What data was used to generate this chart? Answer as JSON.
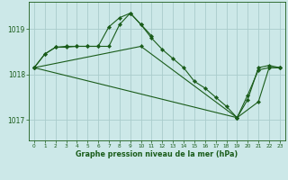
{
  "title": "Graphe pression niveau de la mer (hPa)",
  "bg_color": "#cce8e8",
  "grid_color": "#aacccc",
  "line_color": "#1a5c1a",
  "ylabel_ticks": [
    1017,
    1018,
    1019
  ],
  "xlim": [
    -0.5,
    23.5
  ],
  "ylim": [
    1016.55,
    1019.6
  ],
  "series": [
    {
      "x": [
        0,
        1,
        2,
        3,
        4,
        5,
        6,
        7,
        8,
        9,
        10,
        11
      ],
      "y": [
        1018.15,
        1018.45,
        1018.6,
        1018.6,
        1018.62,
        1018.62,
        1018.62,
        1019.05,
        1019.25,
        1019.35,
        1019.1,
        1018.85
      ]
    },
    {
      "x": [
        0,
        1,
        2,
        3,
        4,
        5,
        6,
        7,
        8,
        9,
        10,
        11,
        12,
        13,
        14,
        15,
        16,
        17,
        18,
        19,
        20,
        21,
        22,
        23
      ],
      "y": [
        1018.15,
        1018.45,
        1018.6,
        1018.62,
        1018.62,
        1018.62,
        1018.62,
        1018.62,
        1019.1,
        1019.35,
        1019.1,
        1018.8,
        1018.55,
        1018.35,
        1018.15,
        1017.85,
        1017.7,
        1017.5,
        1017.3,
        1017.05,
        1017.45,
        1018.15,
        1018.2,
        1018.15
      ]
    },
    {
      "x": [
        0,
        10,
        19,
        21,
        22,
        23
      ],
      "y": [
        1018.15,
        1018.62,
        1017.05,
        1017.4,
        1018.15,
        1018.15
      ]
    },
    {
      "x": [
        0,
        19,
        20,
        21,
        22,
        23
      ],
      "y": [
        1018.15,
        1017.05,
        1017.55,
        1018.1,
        1018.15,
        1018.15
      ]
    }
  ]
}
